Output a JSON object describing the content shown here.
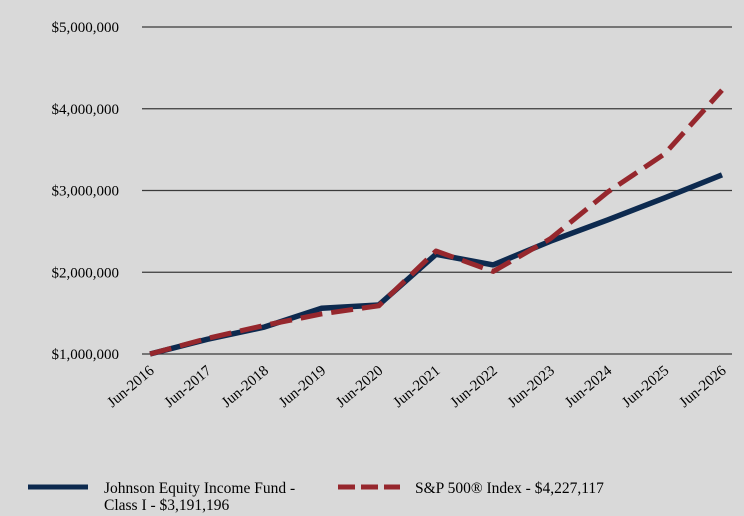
{
  "chart_data": {
    "type": "line",
    "x": [
      "Jun-2016",
      "Jun-2017",
      "Jun-2018",
      "Jun-2019",
      "Jun-2020",
      "Jun-2021",
      "Jun-2022",
      "Jun-2023",
      "Jun-2024",
      "Jun-2025",
      "Jun-2026"
    ],
    "ylim": [
      1000000,
      5000000
    ],
    "yticks": [
      1000000,
      2000000,
      3000000,
      4000000,
      5000000
    ],
    "ytick_labels": [
      "$1,000,000",
      "$2,000,000",
      "$3,000,000",
      "$4,000,000",
      "$5,000,000"
    ],
    "grid": "horizontal",
    "legend_position": "bottom",
    "series": [
      {
        "name": "Johnson Equity Income Fund - Class I - $3,191,196",
        "legend_lines": [
          "Johnson Equity Income Fund -",
          "Class I - $3,191,196"
        ],
        "color": "#0d2a4f",
        "style": "solid",
        "values": [
          1000000,
          1180000,
          1330000,
          1560000,
          1600000,
          2220000,
          2090000,
          2380000,
          2640000,
          2910000,
          3191196
        ]
      },
      {
        "name": "S&P 500® Index - $4,227,117",
        "legend_lines": [
          "S&P 500® Index - $4,227,117"
        ],
        "color": "#96272d",
        "style": "dashed",
        "values": [
          1000000,
          1190000,
          1350000,
          1490000,
          1590000,
          2260000,
          2010000,
          2410000,
          2980000,
          3450000,
          4227117
        ]
      }
    ]
  }
}
